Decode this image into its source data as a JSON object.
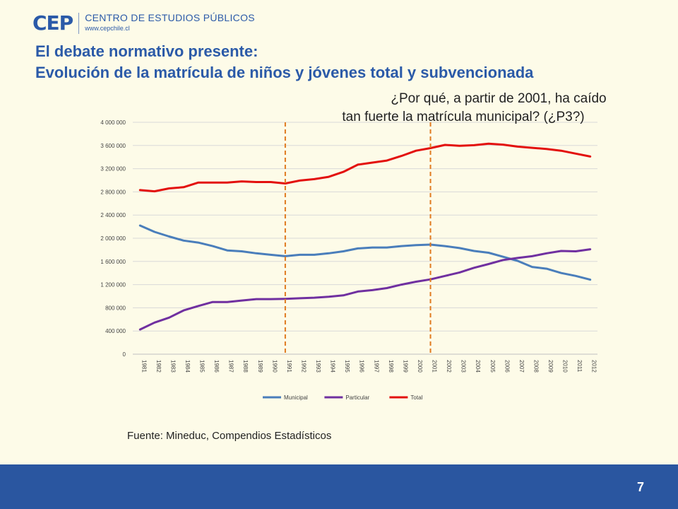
{
  "logo": {
    "mark": "CEP",
    "name": "CENTRO DE ESTUDIOS PÚBLICOS",
    "url": "www.cepchile.cl"
  },
  "title": {
    "line1": "El debate normativo presente:",
    "line2": "Evolución de la matrícula de niños y jóvenes total y subvencionada"
  },
  "question": {
    "line1": "¿Por qué, a partir de 2001, ha caído",
    "line2": "tan fuerte la matrícula municipal? (¿P3?)"
  },
  "source": "Fuente: Mineduc, Compendios Estadísticos",
  "page_number": "7",
  "colors": {
    "title": "#2b5aa8",
    "footer": "#2a56a0",
    "background": "#fdfbe8",
    "marker_line": "#e07b20"
  },
  "chart_data": {
    "type": "line",
    "x": [
      "1981",
      "1982",
      "1983",
      "1984",
      "1985",
      "1986",
      "1987",
      "1988",
      "1989",
      "1990",
      "1991",
      "1992",
      "1993",
      "1994",
      "1995",
      "1996",
      "1997",
      "1998",
      "1999",
      "2000",
      "2001",
      "2002",
      "2003",
      "2004",
      "2005",
      "2006",
      "2007",
      "2008",
      "2009",
      "2010",
      "2011",
      "2012"
    ],
    "ylim": [
      0,
      4000000
    ],
    "yticks": [
      0,
      400000,
      800000,
      1200000,
      1600000,
      2000000,
      2400000,
      2800000,
      3200000,
      3600000,
      4000000
    ],
    "ytick_labels": [
      "0",
      "400 000",
      "800 000",
      "1 200 000",
      "1 600 000",
      "2 000 000",
      "2 400 000",
      "2 800 000",
      "3 200 000",
      "3 600 000",
      "4 000 000"
    ],
    "grid": true,
    "legend_position": "bottom",
    "series": [
      {
        "name": "Municipal",
        "color": "#4a7ebb",
        "values": [
          2220000,
          2110000,
          2030000,
          1960000,
          1925000,
          1865000,
          1790000,
          1775000,
          1740000,
          1715000,
          1690000,
          1715000,
          1715000,
          1740000,
          1775000,
          1825000,
          1840000,
          1840000,
          1865000,
          1880000,
          1890000,
          1865000,
          1830000,
          1780000,
          1750000,
          1680000,
          1610000,
          1505000,
          1475000,
          1400000,
          1350000,
          1285000
        ]
      },
      {
        "name": "Particular",
        "color": "#7030a0",
        "values": [
          425000,
          545000,
          630000,
          755000,
          830000,
          900000,
          900000,
          925000,
          950000,
          950000,
          955000,
          965000,
          975000,
          990000,
          1015000,
          1080000,
          1105000,
          1140000,
          1200000,
          1250000,
          1290000,
          1350000,
          1410000,
          1490000,
          1555000,
          1625000,
          1660000,
          1690000,
          1740000,
          1780000,
          1775000,
          1810000
        ]
      },
      {
        "name": "Total",
        "color": "#e3100e",
        "values": [
          2830000,
          2810000,
          2860000,
          2880000,
          2960000,
          2960000,
          2960000,
          2980000,
          2970000,
          2970000,
          2945000,
          2995000,
          3020000,
          3060000,
          3145000,
          3270000,
          3305000,
          3340000,
          3420000,
          3510000,
          3555000,
          3610000,
          3595000,
          3605000,
          3630000,
          3615000,
          3580000,
          3560000,
          3540000,
          3510000,
          3460000,
          3410000
        ]
      }
    ],
    "annotations": [
      {
        "type": "vertical-dashed-line",
        "at": "1991"
      },
      {
        "type": "vertical-dashed-line",
        "at": "2001"
      }
    ]
  }
}
